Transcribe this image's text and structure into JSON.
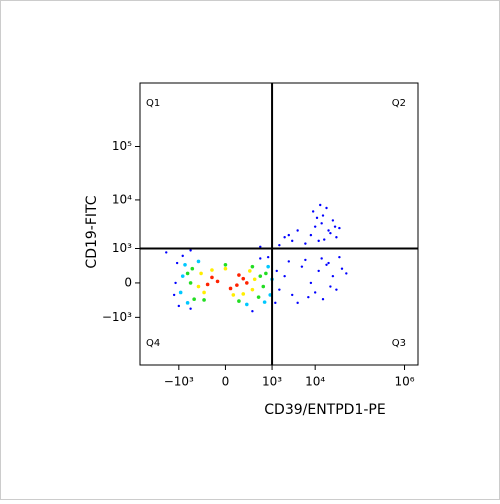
{
  "chart_data": {
    "type": "scatter",
    "x_label": "CD39/ENTPD1-PE",
    "y_label": "CD19-FITC",
    "xscale": "biexponential",
    "yscale": "biexponential",
    "xlim": [
      -8000,
      2000000
    ],
    "ylim": [
      -9600,
      1500000
    ],
    "xticks": [
      {
        "value": -1000,
        "label": "−10³"
      },
      0,
      {
        "value": 1000,
        "label": "10³"
      },
      {
        "value": 10000,
        "label": "10⁴"
      },
      {
        "value": 1000000,
        "label": "10⁶"
      }
    ],
    "yticks": [
      {
        "value": -1000,
        "label": "−10³"
      },
      0,
      {
        "value": 1000,
        "label": "10³"
      },
      {
        "value": 10000,
        "label": "10⁴"
      },
      {
        "value": 100000,
        "label": "10⁵"
      }
    ],
    "gates": {
      "x": 1000,
      "y": 1000
    },
    "quadrants": [
      "Q1",
      "Q2",
      "Q3",
      "Q4"
    ],
    "series": [
      {
        "color": "#0000ff",
        "x": [
          -1200,
          1300,
          -1000,
          1200,
          -1100,
          500,
          -500,
          1500,
          -1300,
          800,
          -800,
          300,
          2000,
          3000,
          5000,
          8000,
          12000,
          15000,
          20000,
          25000,
          30000,
          40000,
          4000,
          6000,
          10000,
          18000,
          35000,
          2500,
          7000,
          50000,
          22000,
          14000,
          8000,
          10000,
          12000,
          15000,
          20000,
          25000,
          30000,
          9000,
          14000,
          18000,
          22000,
          28000,
          11000,
          16000,
          35000,
          13000,
          1500,
          2000,
          3000,
          4000,
          -2000,
          -500,
          500,
          2500,
          6000
        ],
        "values": [
          0,
          200,
          -500,
          -400,
          400,
          550,
          -600,
          -100,
          -200,
          600,
          650,
          -700,
          100,
          -200,
          300,
          0,
          200,
          -300,
          400,
          100,
          -100,
          250,
          -400,
          500,
          -150,
          350,
          600,
          450,
          -250,
          150,
          -50,
          550,
          2000,
          3000,
          1500,
          5000,
          2500,
          4000,
          1800,
          6000,
          3500,
          7000,
          2200,
          3000,
          4500,
          1600,
          2800,
          8000,
          1200,
          1800,
          1500,
          2500,
          800,
          900,
          1100,
          2000,
          1300
        ]
      },
      {
        "color": "#00c8ff",
        "x": [
          -800,
          900,
          -700,
          800,
          -900,
          200,
          -300,
          1000,
          -600,
          650
        ],
        "values": [
          100,
          -200,
          350,
          300,
          -150,
          -450,
          450,
          50,
          -400,
          -380
        ]
      },
      {
        "color": "#22dd22",
        "x": [
          -500,
          500,
          -450,
          450,
          -400,
          600,
          0,
          100,
          -600,
          300,
          -200,
          700
        ],
        "values": [
          0,
          100,
          250,
          -250,
          -300,
          -50,
          350,
          -350,
          150,
          300,
          -320,
          150
        ]
      },
      {
        "color": "#ffee00",
        "x": [
          -250,
          300,
          -200,
          250,
          0,
          -300,
          350,
          50,
          -100,
          150
        ],
        "values": [
          150,
          -100,
          -150,
          200,
          250,
          -50,
          50,
          -200,
          220,
          -180
        ]
      },
      {
        "color": "#ff2200",
        "x": [
          -50,
          80,
          150,
          -100,
          30,
          200,
          -150,
          100
        ],
        "values": [
          20,
          -30,
          60,
          80,
          -80,
          0,
          -20,
          120
        ]
      }
    ]
  }
}
